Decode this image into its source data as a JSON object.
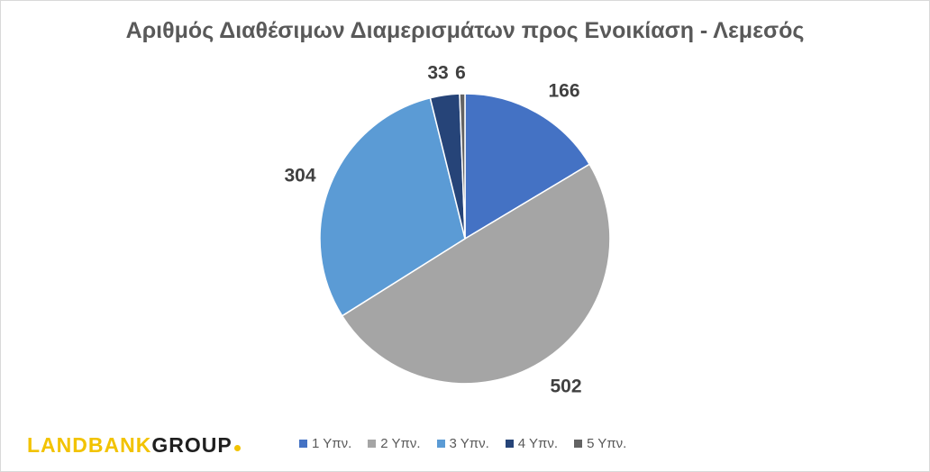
{
  "chart_data": {
    "type": "pie",
    "title": "Αριθμός Διαθέσιμων Διαμερισμάτων προς Ενοικίαση - Λεμεσός",
    "categories": [
      "1 Υπν.",
      "2 Υπν.",
      "3 Υπν.",
      "4 Υπν.",
      "5 Υπν."
    ],
    "values": [
      166,
      502,
      304,
      33,
      6
    ],
    "colors": [
      "#4472c4",
      "#a5a5a5",
      "#5b9bd5",
      "#264478",
      "#636363"
    ],
    "legend_position": "bottom",
    "data_labels": true
  },
  "logo": {
    "part1": "LANDBANK",
    "part2": "GROUP"
  }
}
